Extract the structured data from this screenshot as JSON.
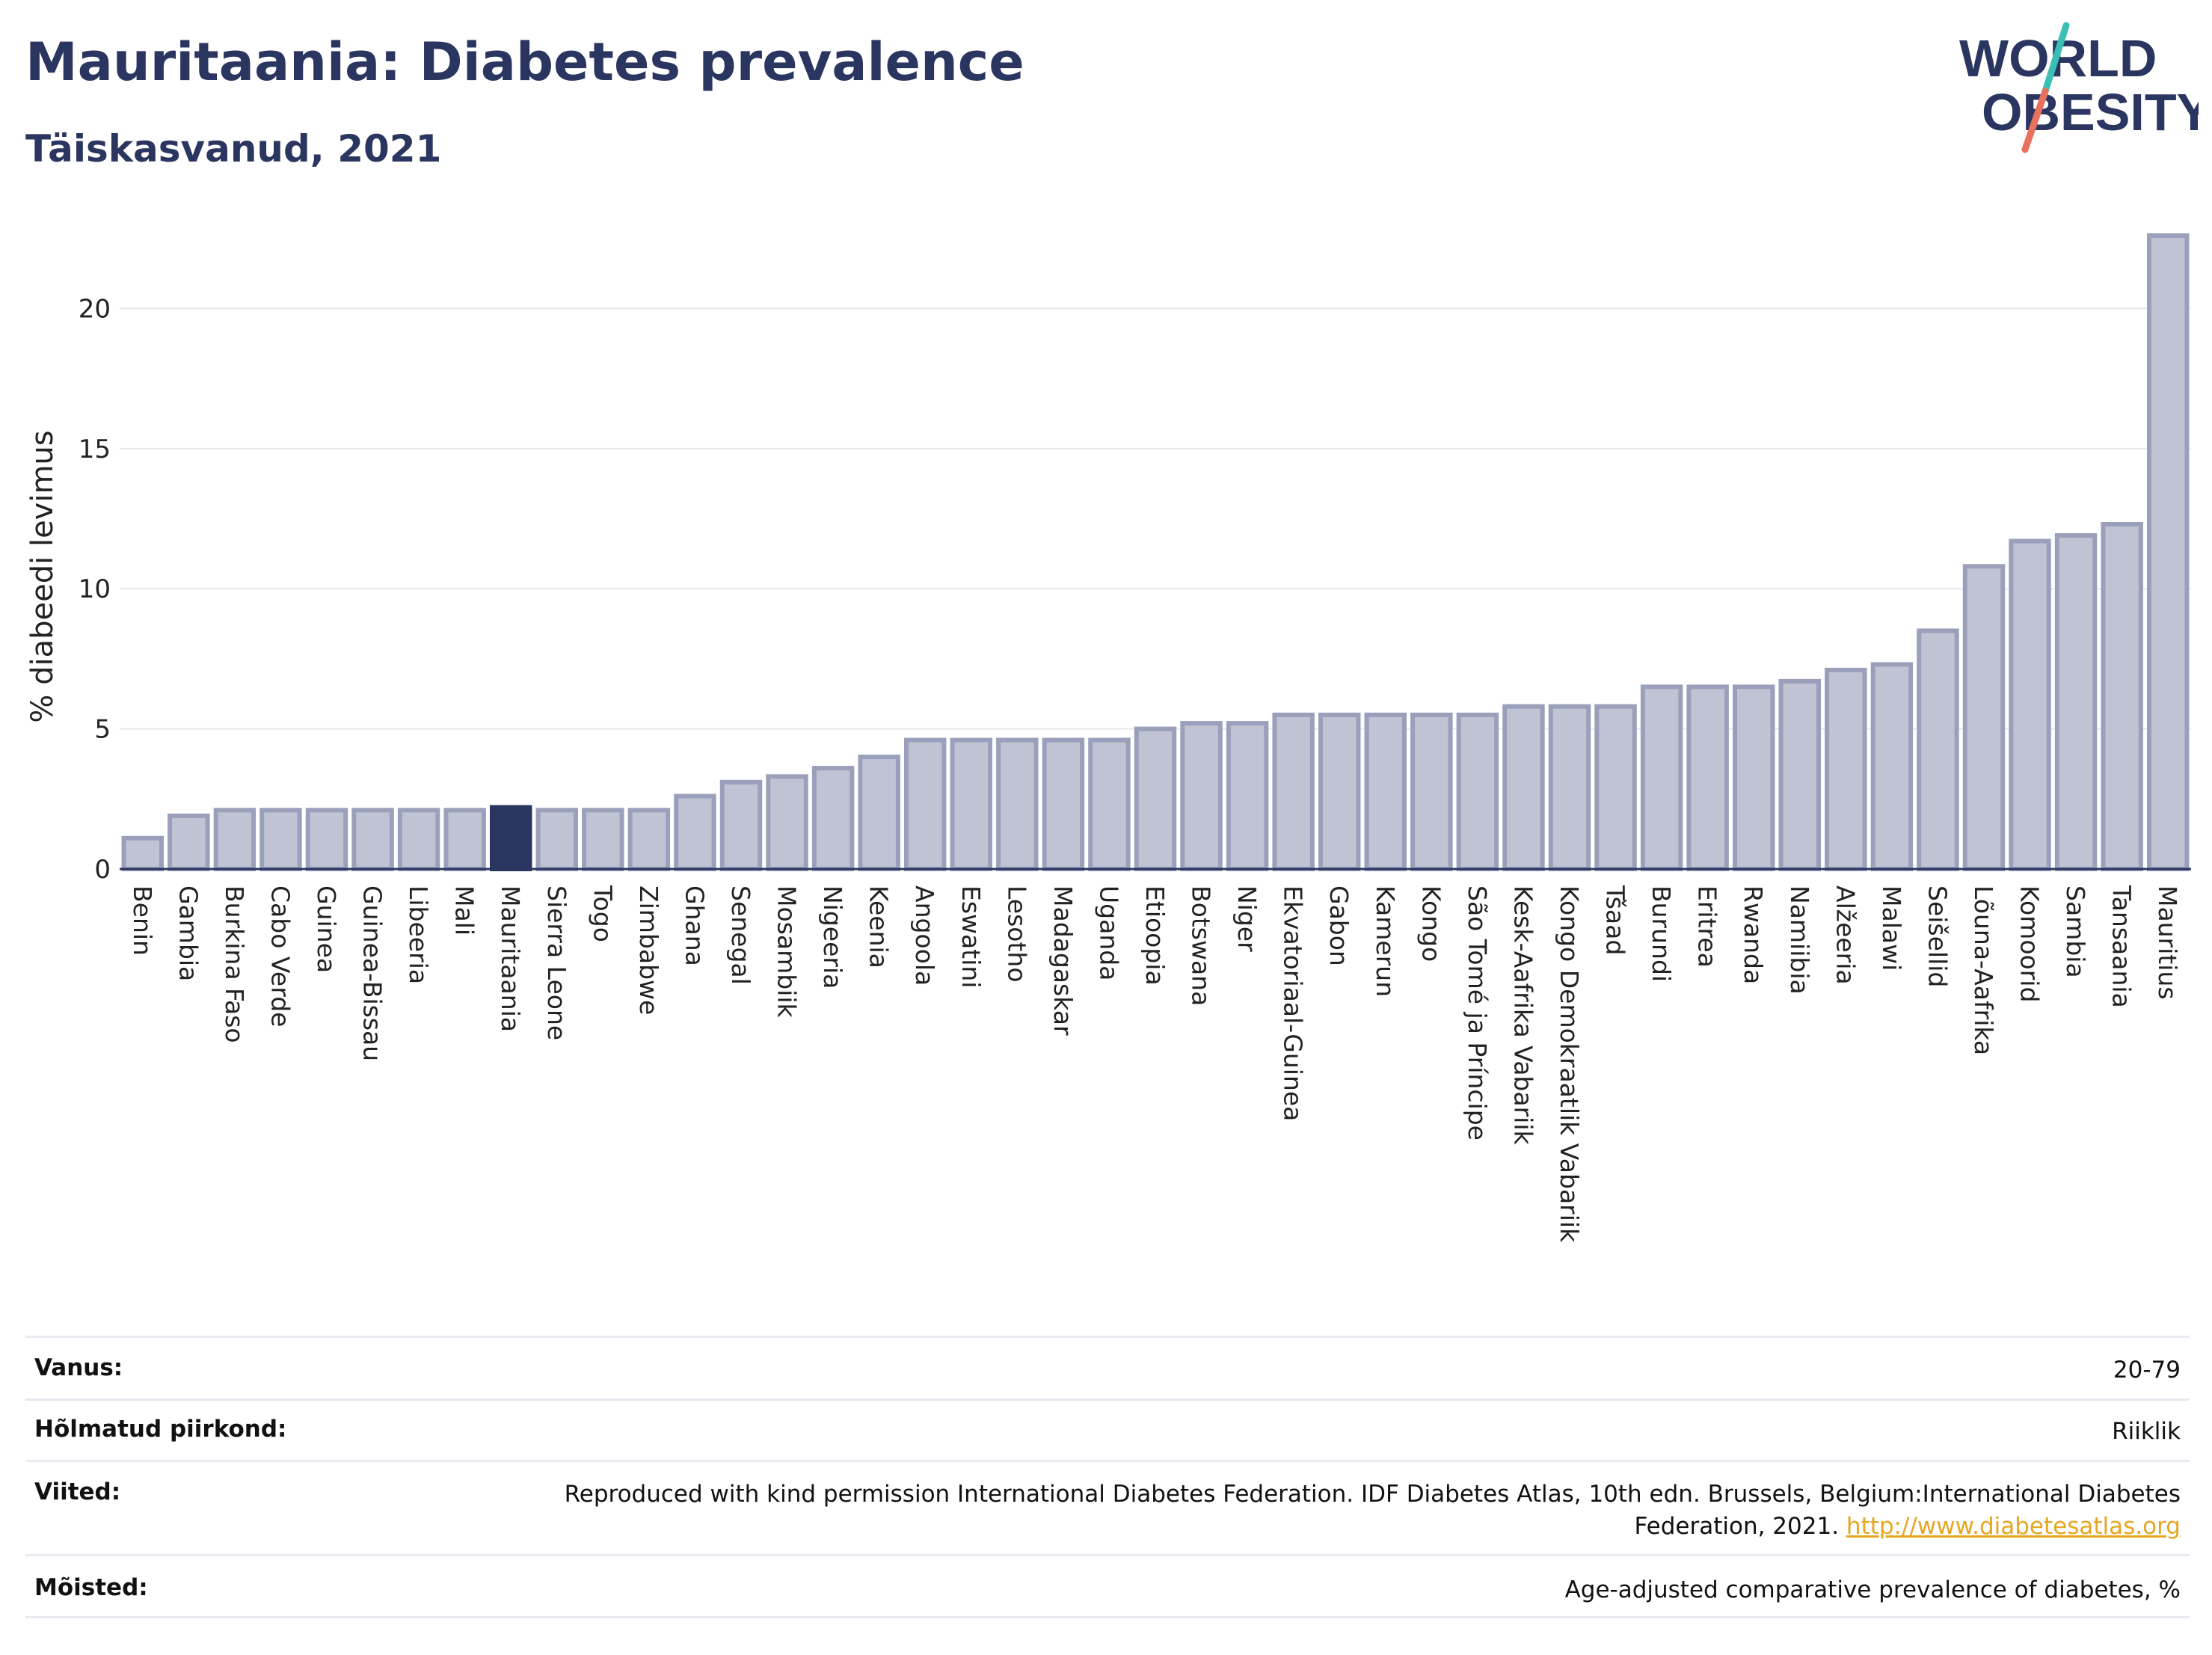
{
  "header": {
    "title": "Mauritaania: Diabetes prevalence",
    "subtitle": "Täiskasvanud, 2021"
  },
  "logo": {
    "line1": "WORLD",
    "line2": "OBESITY",
    "colors": {
      "text": "#2a3560",
      "slash_top": "#3bbfb4",
      "slash_bottom": "#e8715e"
    }
  },
  "chart_data": {
    "type": "bar",
    "ylabel": "% diabeedi levimus",
    "xlabel": "",
    "ylim": [
      0,
      23
    ],
    "yticks": [
      0,
      5,
      10,
      15,
      20
    ],
    "grid": true,
    "highlight": "Mauritaania",
    "colors": {
      "bar": "#bfc3d4",
      "bar_edge": "#9aa0bb",
      "highlight": "#2a3560",
      "grid": "#e6e8ef",
      "axis": "#2a3560"
    },
    "categories": [
      "Benin",
      "Gambia",
      "Burkina Faso",
      "Cabo Verde",
      "Guinea",
      "Guinea-Bissau",
      "Libeeria",
      "Mali",
      "Mauritaania",
      "Sierra Leone",
      "Togo",
      "Zimbabwe",
      "Ghana",
      "Senegal",
      "Mosambiik",
      "Nigeeria",
      "Keenia",
      "Angoola",
      "Eswatini",
      "Lesotho",
      "Madagaskar",
      "Uganda",
      "Etioopia",
      "Botswana",
      "Niger",
      "Ekvatoriaal-Guinea",
      "Gabon",
      "Kamerun",
      "Kongo",
      "São Tomé ja Príncipe",
      "Kesk-Aafrika Vabariik",
      "Kongo Demokraatlik Vabariik",
      "Tšaad",
      "Burundi",
      "Eritrea",
      "Rwanda",
      "Namiibia",
      "Alžeeria",
      "Malawi",
      "Seišellid",
      "Lõuna-Aafrika",
      "Komoorid",
      "Sambia",
      "Tansaania",
      "Mauritius"
    ],
    "values": [
      1.1,
      1.9,
      2.1,
      2.1,
      2.1,
      2.1,
      2.1,
      2.1,
      2.2,
      2.1,
      2.1,
      2.1,
      2.6,
      3.1,
      3.3,
      3.6,
      4.0,
      4.6,
      4.6,
      4.6,
      4.6,
      4.6,
      5.0,
      5.2,
      5.2,
      5.5,
      5.5,
      5.5,
      5.5,
      5.5,
      5.8,
      5.8,
      5.8,
      6.5,
      6.5,
      6.5,
      6.7,
      7.1,
      7.3,
      8.5,
      10.8,
      11.7,
      11.9,
      12.3,
      22.6
    ]
  },
  "meta": {
    "age_label": "Vanus:",
    "age_value": "20-79",
    "region_label": "Hõlmatud piirkond:",
    "region_value": "Riiklik",
    "refs_label": "Viited:",
    "refs_text": "Reproduced with kind permission International Diabetes Federation.  IDF Diabetes Atlas, 10th edn. Brussels, Belgium:International Diabetes Federation, 2021.",
    "refs_link": "http://www.diabetesatlas.org",
    "def_label": "Mõisted:",
    "def_value": "Age-adjusted comparative prevalence of diabetes, %"
  }
}
